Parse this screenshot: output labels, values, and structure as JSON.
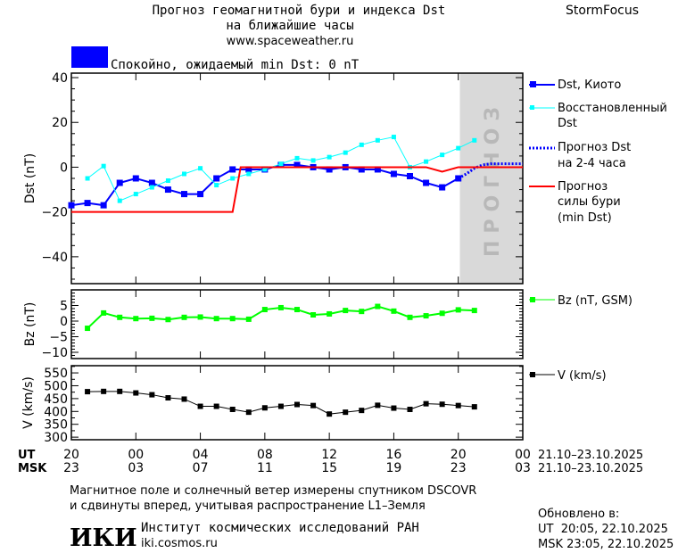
{
  "header": {
    "title_line1": "Прогноз геомагнитной бури и индекса Dst",
    "title_line2": "на ближайшие часы",
    "site": "www.spaceweather.ru",
    "brand": "StormFocus",
    "status": "Спокойно, ожидаемый min Dst: 0 nT",
    "status_color": "#0000ff"
  },
  "forecast_zone_label": "ПРОГНОЗ",
  "colors": {
    "kyoto": "#0000ff",
    "restored": "#00ffff",
    "forecast": "#0000ff",
    "storm": "#ff0000",
    "bz": "#00ff00",
    "v": "#000000",
    "forecast_zone": "#d9d9d9"
  },
  "legend": {
    "kyoto": "Dst, Киото",
    "restored_1": "Восстановленный",
    "restored_2": "Dst",
    "forecast_1": "Прогноз Dst",
    "forecast_2": "на 2-4 часа",
    "storm_1": "Прогноз",
    "storm_2": "силы бури",
    "storm_3": "(min Dst)",
    "bz": "Bz (nT, GSM)",
    "v": "V (km/s)"
  },
  "chart_data": [
    {
      "type": "line",
      "ylabel": "Dst (nT)",
      "ylim": [
        -52,
        42
      ],
      "yticks": [
        "40",
        "20",
        "0",
        "−20",
        "−40"
      ],
      "ytick_values": [
        40,
        20,
        0,
        -20,
        -40
      ],
      "xlim_hours_from_20UT": [
        0,
        28
      ],
      "forecast_zone_hours": [
        24.1,
        28
      ],
      "series": [
        {
          "name": "Dst, Киото",
          "x": [
            0,
            1,
            2,
            3,
            4,
            5,
            6,
            7,
            8,
            9,
            10,
            11,
            12,
            13,
            14,
            15,
            16,
            17,
            18,
            19,
            20,
            21,
            22,
            23,
            24
          ],
          "values": [
            -17,
            -16,
            -17,
            -7,
            -5,
            -7,
            -10,
            -12,
            -12,
            -5,
            -1,
            -1,
            -1,
            1,
            1,
            0,
            -1,
            0,
            -1,
            -1,
            -3,
            -4,
            -7,
            -9,
            -5
          ]
        },
        {
          "name": "Восстановленный Dst",
          "x": [
            1,
            2,
            3,
            4,
            5,
            6,
            7,
            8,
            9,
            10,
            11,
            12,
            13,
            14,
            15,
            16,
            17,
            18,
            19,
            20,
            21,
            22,
            23,
            24,
            25
          ],
          "values": [
            -5,
            0.5,
            -15,
            -12,
            -9,
            -6,
            -3,
            -0.5,
            -8,
            -5,
            -3,
            -1,
            1.5,
            4,
            3,
            4.5,
            6.5,
            10,
            12,
            13.5,
            0,
            2.5,
            5.5,
            8.5,
            12
          ]
        },
        {
          "name": "Прогноз Dst на 2-4 часа",
          "x": [
            24,
            24.5,
            25,
            25.5,
            26,
            27,
            28
          ],
          "values": [
            -5,
            -3,
            -0.5,
            1,
            1.5,
            1.5,
            1.5
          ]
        },
        {
          "name": "Прогноз силы бури (min Dst)",
          "x": [
            0,
            10,
            10.5,
            22,
            23,
            24,
            28
          ],
          "values": [
            -20,
            -20,
            0,
            0,
            -2,
            0,
            0
          ]
        }
      ]
    },
    {
      "type": "line",
      "ylabel": "Bz (nT)",
      "ylim": [
        -12,
        10
      ],
      "yticks": [
        "5",
        "0",
        "−5",
        "−10"
      ],
      "ytick_values": [
        5,
        0,
        -5,
        -10
      ],
      "series": [
        {
          "name": "Bz (nT, GSM)",
          "x": [
            1,
            2,
            3,
            4,
            5,
            6,
            7,
            8,
            9,
            10,
            11,
            12,
            13,
            14,
            15,
            16,
            17,
            18,
            19,
            20,
            21,
            22,
            23,
            24,
            25
          ],
          "values": [
            -2.3,
            2.6,
            1.2,
            0.8,
            0.9,
            0.5,
            1.2,
            1.3,
            0.8,
            0.8,
            0.6,
            3.7,
            4.3,
            3.7,
            2.0,
            2.3,
            3.4,
            3.1,
            4.7,
            3.2,
            1.2,
            1.7,
            2.5,
            3.6,
            3.4
          ]
        }
      ]
    },
    {
      "type": "line",
      "ylabel": "V (km/s)",
      "ylim": [
        290,
        578
      ],
      "yticks": [
        "550",
        "500",
        "450",
        "400",
        "350",
        "300"
      ],
      "ytick_values": [
        550,
        500,
        450,
        400,
        350,
        300
      ],
      "series": [
        {
          "name": "V (km/s)",
          "x": [
            1,
            2,
            3,
            4,
            5,
            6,
            7,
            8,
            9,
            10,
            11,
            12,
            13,
            14,
            15,
            16,
            17,
            18,
            19,
            20,
            21,
            22,
            23,
            24,
            25
          ],
          "values": [
            477,
            478,
            478,
            472,
            465,
            453,
            448,
            420,
            420,
            408,
            397,
            414,
            420,
            427,
            423,
            390,
            397,
            404,
            424,
            413,
            408,
            430,
            428,
            423,
            418
          ]
        }
      ]
    }
  ],
  "time_axis": {
    "ut_label": "UT",
    "msk_label": "MSK",
    "ut_ticks": [
      "20",
      "00",
      "04",
      "08",
      "12",
      "16",
      "20",
      "00"
    ],
    "msk_ticks": [
      "23",
      "03",
      "07",
      "11",
      "15",
      "19",
      "23",
      "03"
    ],
    "ut_range": "21.10–23.10.2025",
    "msk_range": "21.10–23.10.2025"
  },
  "footer": {
    "note_1": "Магнитное поле и солнечный ветер измерены спутником DSCOVR",
    "note_2": "и сдвинуты вперед, учитывая распространение L1–Земля",
    "logo": "ИКИ",
    "institute": "Институт космических исследований РАН",
    "institute_url": "iki.cosmos.ru",
    "updated_label": "Обновлено в:",
    "updated_ut": "UT  20:05, 22.10.2025",
    "updated_msk": "MSK 23:05, 22.10.2025"
  }
}
